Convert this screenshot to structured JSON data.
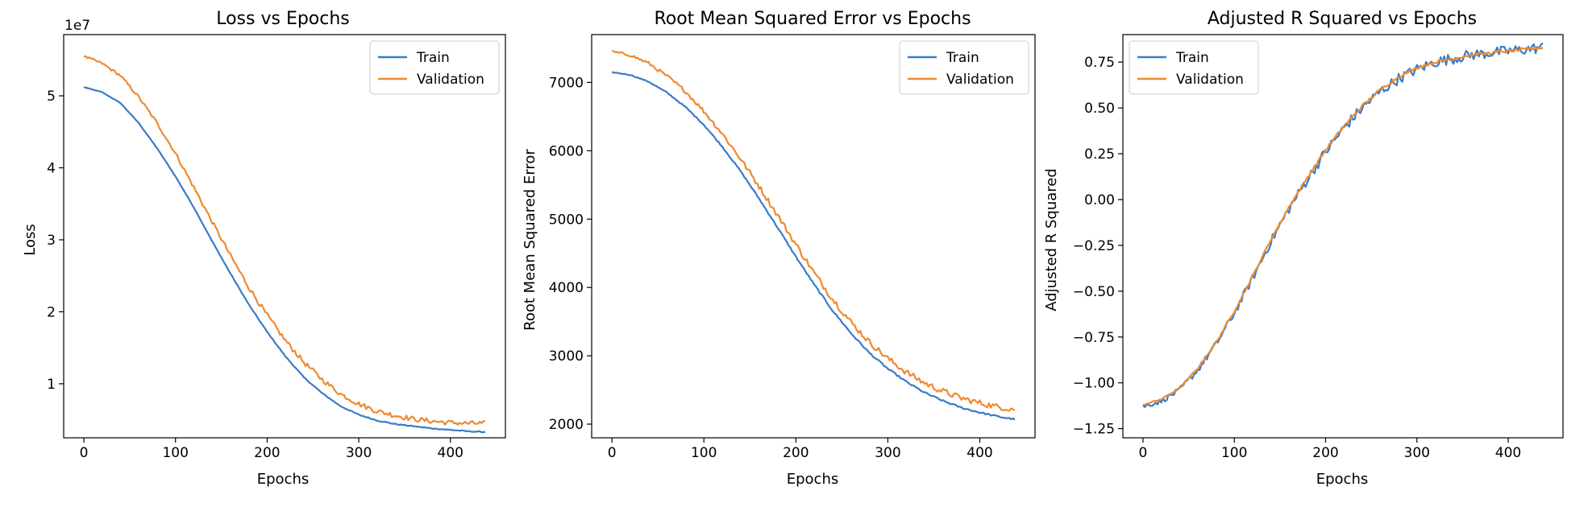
{
  "figure": {
    "charts_count": 3
  },
  "chart_data": [
    {
      "type": "line",
      "title": "Loss vs Epochs",
      "xlabel": "Epochs",
      "ylabel": "Loss",
      "offset_text": "1e7",
      "xlim": [
        -22,
        460
      ],
      "ylim": [
        0.25,
        5.85
      ],
      "xticks": [
        0,
        100,
        200,
        300,
        400
      ],
      "yticks": [
        1,
        2,
        3,
        4,
        5
      ],
      "ytick_labels": [
        "1",
        "2",
        "3",
        "4",
        "5"
      ],
      "legend": "top-right",
      "grid": false,
      "series": [
        {
          "name": "Train",
          "color": "#3a7bc8",
          "x": [
            0,
            20,
            40,
            60,
            80,
            100,
            120,
            140,
            160,
            180,
            200,
            220,
            240,
            260,
            280,
            300,
            320,
            340,
            360,
            380,
            400,
            420,
            438
          ],
          "values": [
            5.12,
            5.05,
            4.9,
            4.62,
            4.27,
            3.88,
            3.45,
            2.98,
            2.53,
            2.1,
            1.72,
            1.38,
            1.09,
            0.87,
            0.69,
            0.57,
            0.49,
            0.44,
            0.41,
            0.38,
            0.36,
            0.34,
            0.33
          ],
          "noise": 0.006
        },
        {
          "name": "Validation",
          "color": "#ee8a2f",
          "x": [
            0,
            20,
            40,
            60,
            80,
            100,
            120,
            140,
            160,
            180,
            200,
            220,
            240,
            260,
            280,
            300,
            320,
            340,
            360,
            380,
            400,
            420,
            438
          ],
          "values": [
            5.55,
            5.45,
            5.28,
            4.98,
            4.62,
            4.2,
            3.73,
            3.25,
            2.78,
            2.34,
            1.95,
            1.6,
            1.3,
            1.06,
            0.86,
            0.72,
            0.62,
            0.56,
            0.51,
            0.48,
            0.46,
            0.45,
            0.45
          ],
          "noise": 0.035
        }
      ]
    },
    {
      "type": "line",
      "title": "Root Mean Squared Error vs Epochs",
      "xlabel": "Epochs",
      "ylabel": "Root Mean Squared Error",
      "xlim": [
        -22,
        460
      ],
      "ylim": [
        1800,
        7700
      ],
      "xticks": [
        0,
        100,
        200,
        300,
        400
      ],
      "yticks": [
        2000,
        3000,
        4000,
        5000,
        6000,
        7000
      ],
      "ytick_labels": [
        "2000",
        "3000",
        "4000",
        "5000",
        "6000",
        "7000"
      ],
      "legend": "top-right",
      "grid": false,
      "series": [
        {
          "name": "Train",
          "color": "#3a7bc8",
          "x": [
            0,
            20,
            40,
            60,
            80,
            100,
            120,
            140,
            160,
            180,
            200,
            220,
            240,
            260,
            280,
            300,
            320,
            340,
            360,
            380,
            400,
            420,
            438
          ],
          "values": [
            7150,
            7110,
            7010,
            6850,
            6640,
            6380,
            6060,
            5700,
            5300,
            4880,
            4450,
            4040,
            3660,
            3330,
            3040,
            2810,
            2620,
            2460,
            2340,
            2240,
            2170,
            2110,
            2070
          ],
          "noise": 12
        },
        {
          "name": "Validation",
          "color": "#ee8a2f",
          "x": [
            0,
            20,
            40,
            60,
            80,
            100,
            120,
            140,
            160,
            180,
            200,
            220,
            240,
            260,
            280,
            300,
            320,
            340,
            360,
            380,
            400,
            420,
            438
          ],
          "values": [
            7450,
            7400,
            7280,
            7090,
            6870,
            6580,
            6250,
            5880,
            5480,
            5060,
            4630,
            4210,
            3830,
            3490,
            3200,
            2960,
            2760,
            2600,
            2480,
            2380,
            2310,
            2250,
            2220
          ],
          "noise": 45
        }
      ]
    },
    {
      "type": "line",
      "title": "Adjusted R Squared vs Epochs",
      "xlabel": "Epochs",
      "ylabel": "Adjusted R Squared",
      "xlim": [
        -22,
        460
      ],
      "ylim": [
        -1.3,
        0.9
      ],
      "xticks": [
        0,
        100,
        200,
        300,
        400
      ],
      "yticks": [
        -1.25,
        -1.0,
        -0.75,
        -0.5,
        -0.25,
        0.0,
        0.25,
        0.5,
        0.75
      ],
      "ytick_labels": [
        "−1.25",
        "−1.00",
        "−0.75",
        "−0.50",
        "−0.25",
        "0.00",
        "0.25",
        "0.50",
        "0.75"
      ],
      "legend": "top-left",
      "grid": false,
      "series": [
        {
          "name": "Train",
          "color": "#3a7bc8",
          "x": [
            0,
            20,
            40,
            60,
            80,
            100,
            120,
            140,
            160,
            180,
            200,
            220,
            240,
            260,
            280,
            300,
            320,
            340,
            360,
            380,
            400,
            420,
            438
          ],
          "values": [
            -1.13,
            -1.1,
            -1.04,
            -0.93,
            -0.79,
            -0.62,
            -0.43,
            -0.23,
            -0.05,
            0.11,
            0.26,
            0.39,
            0.5,
            0.59,
            0.66,
            0.71,
            0.75,
            0.77,
            0.79,
            0.8,
            0.81,
            0.82,
            0.83
          ],
          "noise": 0.03
        },
        {
          "name": "Validation",
          "color": "#ee8a2f",
          "x": [
            0,
            20,
            40,
            60,
            80,
            100,
            120,
            140,
            160,
            180,
            200,
            220,
            240,
            260,
            280,
            300,
            320,
            340,
            360,
            380,
            400,
            420,
            438
          ],
          "values": [
            -1.12,
            -1.09,
            -1.03,
            -0.92,
            -0.78,
            -0.61,
            -0.42,
            -0.22,
            -0.04,
            0.12,
            0.27,
            0.4,
            0.51,
            0.6,
            0.67,
            0.72,
            0.75,
            0.77,
            0.79,
            0.8,
            0.81,
            0.82,
            0.83
          ],
          "noise": 0.008
        }
      ]
    }
  ]
}
